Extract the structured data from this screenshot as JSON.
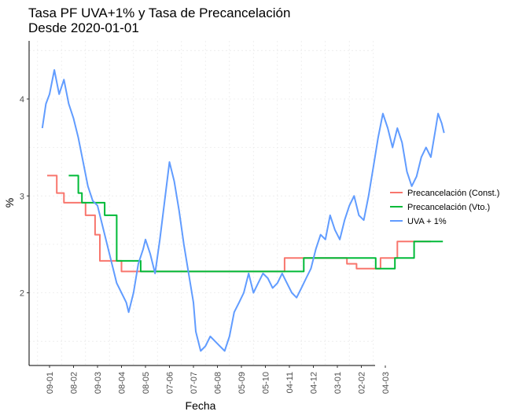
{
  "chart_data": {
    "type": "line",
    "title": "Tasa PF UVA+1% y Tasa de Precancelación",
    "subtitle": "Desde 2020-01-01",
    "xlabel": "Fecha",
    "ylabel": "%",
    "ylim": [
      1.25,
      4.6
    ],
    "yticks": [
      2,
      3,
      4
    ],
    "x_tick_labels": [
      "09-01",
      "08-02",
      "09-03",
      "08-04",
      "08-05",
      "07-06",
      "07-07",
      "06-08",
      "05-09",
      "05-10",
      "04-11",
      "04-12",
      "03-01",
      "02-02",
      "04-03"
    ],
    "grid": true,
    "legend_position": "right",
    "legend_entries": [
      "Precancelación (Const.)",
      "Precancelación (Vto.)",
      "UVA + 1%"
    ],
    "series": [
      {
        "name": "Precancelación (Const.)",
        "color": "#F8766D",
        "step": true,
        "points": [
          [
            0.9,
            3.21
          ],
          [
            1.3,
            3.03
          ],
          [
            1.6,
            2.93
          ],
          [
            2.5,
            2.8
          ],
          [
            2.9,
            2.6
          ],
          [
            3.1,
            2.33
          ],
          [
            4.0,
            2.22
          ],
          [
            5.8,
            2.22
          ],
          [
            7.5,
            2.22
          ],
          [
            10.0,
            2.22
          ],
          [
            10.8,
            2.36
          ],
          [
            13.4,
            2.3
          ],
          [
            13.8,
            2.25
          ],
          [
            14.8,
            2.36
          ],
          [
            15.5,
            2.53
          ],
          [
            16.9,
            2.53
          ]
        ]
      },
      {
        "name": "Precancelación (Vto.)",
        "color": "#00BA38",
        "step": true,
        "points": [
          [
            1.8,
            3.21
          ],
          [
            2.2,
            3.03
          ],
          [
            2.35,
            2.93
          ],
          [
            2.8,
            2.93
          ],
          [
            3.3,
            2.8
          ],
          [
            3.8,
            2.33
          ],
          [
            4.8,
            2.22
          ],
          [
            7.0,
            2.22
          ],
          [
            9.5,
            2.22
          ],
          [
            11.6,
            2.36
          ],
          [
            13.5,
            2.36
          ],
          [
            14.6,
            2.25
          ],
          [
            15.4,
            2.36
          ],
          [
            16.2,
            2.53
          ],
          [
            16.9,
            2.53
          ],
          [
            17.4,
            2.53
          ]
        ]
      },
      {
        "name": "UVA + 1%",
        "color": "#619CFF",
        "step": false,
        "points": [
          [
            0.7,
            3.7
          ],
          [
            0.85,
            3.95
          ],
          [
            1.0,
            4.05
          ],
          [
            1.2,
            4.3
          ],
          [
            1.4,
            4.05
          ],
          [
            1.6,
            4.2
          ],
          [
            1.8,
            3.95
          ],
          [
            2.0,
            3.8
          ],
          [
            2.2,
            3.6
          ],
          [
            2.4,
            3.35
          ],
          [
            2.6,
            3.1
          ],
          [
            2.8,
            2.95
          ],
          [
            3.0,
            2.9
          ],
          [
            3.2,
            2.7
          ],
          [
            3.4,
            2.5
          ],
          [
            3.6,
            2.3
          ],
          [
            3.8,
            2.1
          ],
          [
            4.0,
            2.0
          ],
          [
            4.2,
            1.9
          ],
          [
            4.3,
            1.8
          ],
          [
            4.5,
            2.0
          ],
          [
            4.7,
            2.3
          ],
          [
            4.9,
            2.45
          ],
          [
            5.0,
            2.55
          ],
          [
            5.2,
            2.4
          ],
          [
            5.4,
            2.2
          ],
          [
            5.6,
            2.55
          ],
          [
            5.8,
            2.95
          ],
          [
            6.0,
            3.35
          ],
          [
            6.2,
            3.15
          ],
          [
            6.4,
            2.85
          ],
          [
            6.6,
            2.5
          ],
          [
            6.8,
            2.2
          ],
          [
            7.0,
            1.9
          ],
          [
            7.1,
            1.6
          ],
          [
            7.3,
            1.4
          ],
          [
            7.5,
            1.45
          ],
          [
            7.7,
            1.55
          ],
          [
            7.9,
            1.5
          ],
          [
            8.1,
            1.45
          ],
          [
            8.3,
            1.4
          ],
          [
            8.5,
            1.55
          ],
          [
            8.7,
            1.8
          ],
          [
            8.9,
            1.9
          ],
          [
            9.1,
            2.0
          ],
          [
            9.3,
            2.2
          ],
          [
            9.5,
            2.0
          ],
          [
            9.7,
            2.1
          ],
          [
            9.9,
            2.2
          ],
          [
            10.1,
            2.15
          ],
          [
            10.3,
            2.05
          ],
          [
            10.5,
            2.1
          ],
          [
            10.7,
            2.2
          ],
          [
            10.9,
            2.1
          ],
          [
            11.1,
            2.0
          ],
          [
            11.3,
            1.95
          ],
          [
            11.5,
            2.05
          ],
          [
            11.7,
            2.15
          ],
          [
            11.9,
            2.25
          ],
          [
            12.1,
            2.45
          ],
          [
            12.3,
            2.6
          ],
          [
            12.5,
            2.55
          ],
          [
            12.7,
            2.8
          ],
          [
            12.9,
            2.65
          ],
          [
            13.1,
            2.55
          ],
          [
            13.3,
            2.75
          ],
          [
            13.5,
            2.9
          ],
          [
            13.7,
            3.0
          ],
          [
            13.9,
            2.8
          ],
          [
            14.1,
            2.75
          ],
          [
            14.3,
            3.0
          ],
          [
            14.5,
            3.3
          ],
          [
            14.7,
            3.6
          ],
          [
            14.9,
            3.85
          ],
          [
            15.1,
            3.7
          ],
          [
            15.3,
            3.5
          ],
          [
            15.5,
            3.7
          ],
          [
            15.7,
            3.55
          ],
          [
            15.9,
            3.25
          ],
          [
            16.1,
            3.1
          ],
          [
            16.3,
            3.2
          ],
          [
            16.5,
            3.4
          ],
          [
            16.7,
            3.5
          ],
          [
            16.9,
            3.4
          ],
          [
            17.1,
            3.7
          ],
          [
            17.2,
            3.85
          ],
          [
            17.35,
            3.75
          ],
          [
            17.45,
            3.65
          ]
        ]
      }
    ]
  }
}
